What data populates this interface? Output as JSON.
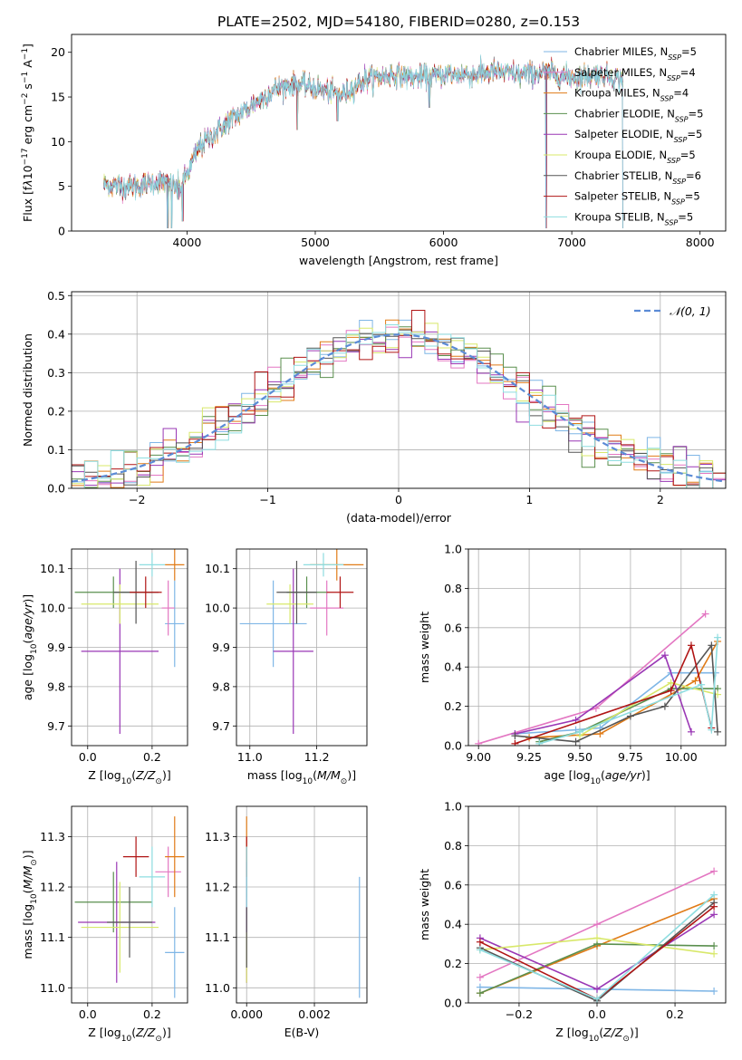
{
  "figure": {
    "title": "PLATE=2502, MJD=54180, FIBERID=0280, z=0.153"
  },
  "models": [
    {
      "name": "Chabrier MILES",
      "nssp": "5",
      "color": "#7fb6e6"
    },
    {
      "name": "Salpeter MILES",
      "nssp": "4",
      "color": "#e377c2"
    },
    {
      "name": "Kroupa MILES",
      "nssp": "4",
      "color": "#e07b17"
    },
    {
      "name": "Chabrier ELODIE",
      "nssp": "5",
      "color": "#5a8f4e"
    },
    {
      "name": "Salpeter ELODIE",
      "nssp": "5",
      "color": "#9a37b5"
    },
    {
      "name": "Kroupa ELODIE",
      "nssp": "5",
      "color": "#d8e86a"
    },
    {
      "name": "Chabrier STELIB",
      "nssp": "6",
      "color": "#555555"
    },
    {
      "name": "Salpeter STELIB",
      "nssp": "5",
      "color": "#b01515"
    },
    {
      "name": "Kroupa STELIB",
      "nssp": "5",
      "color": "#8edde0"
    }
  ],
  "legend_prefix": "N",
  "legend_sub": "SSP",
  "chart_data": [
    {
      "id": "spectrum",
      "type": "line",
      "xlabel": "wavelength [Angstrom, rest frame]",
      "ylabel": "Flux [f_λ10^-17 erg cm^-2 s^-1 A^-1]",
      "xlim": [
        3100,
        8200
      ],
      "ylim": [
        0,
        22
      ],
      "xticks": [
        4000,
        5000,
        6000,
        7000,
        8000
      ],
      "yticks": [
        0,
        5,
        10,
        15,
        20
      ],
      "grid": false,
      "legend": "upper right",
      "anchor_x": [
        3350,
        3600,
        3800,
        3950,
        4100,
        4300,
        4500,
        4700,
        4850,
        5000,
        5200,
        5400,
        5600,
        5800,
        6000,
        6200,
        6400,
        6600,
        6800,
        7000,
        7200,
        7400
      ],
      "anchor_y": [
        5.2,
        5.0,
        5.5,
        4.8,
        9.5,
        12.0,
        14.0,
        16.0,
        16.5,
        16.0,
        15.2,
        17.0,
        17.5,
        17.2,
        17.5,
        17.5,
        17.8,
        17.5,
        17.8,
        17.2,
        17.5,
        17.0
      ],
      "dips": [
        {
          "x": 3850,
          "y": 0
        },
        {
          "x": 3880,
          "y": 0
        },
        {
          "x": 3930,
          "y": 3.2
        },
        {
          "x": 3965,
          "y": 0.8
        },
        {
          "x": 4300,
          "y": 10.5
        },
        {
          "x": 4860,
          "y": 11.0
        },
        {
          "x": 5175,
          "y": 12.0
        },
        {
          "x": 5890,
          "y": 13.5
        },
        {
          "x": 6800,
          "y": 0
        },
        {
          "x": 7400,
          "y": 0
        }
      ]
    },
    {
      "id": "residuals",
      "type": "step-histogram",
      "xlabel": "(data-model)/error",
      "ylabel": "Normed distribution",
      "xlim": [
        -2.5,
        2.5
      ],
      "ylim": [
        0,
        0.51
      ],
      "xticks": [
        -2,
        -1,
        0,
        1,
        2
      ],
      "yticks": [
        0.0,
        0.1,
        0.2,
        0.3,
        0.4,
        0.5
      ],
      "grid": true,
      "bin_width": 0.1,
      "legend": "upper right",
      "reference_curve": {
        "name": "𝒩(0, 1)",
        "color": "#5b8bd6",
        "mean": 0,
        "std": 1
      }
    },
    {
      "id": "age-vs-Z",
      "type": "errorbar",
      "xlabel": "Z [log10(Z/Z⊙)]",
      "ylabel": "age  [log10(age/yr)]",
      "xlim": [
        -0.05,
        0.31
      ],
      "ylim": [
        9.65,
        10.15
      ],
      "xticks": [
        0.0,
        0.2
      ],
      "yticks": [
        9.7,
        9.8,
        9.9,
        10.0,
        10.1
      ],
      "grid": true,
      "points": [
        {
          "model": 0,
          "x": 0.27,
          "xerr": 0.03,
          "y": 9.96,
          "yerr": 0.11
        },
        {
          "model": 1,
          "x": 0.25,
          "xerr": 0.02,
          "y": 10.0,
          "yerr": 0.07
        },
        {
          "model": 2,
          "x": 0.27,
          "xerr": 0.03,
          "y": 10.11,
          "yerr": 0.04
        },
        {
          "model": 3,
          "x": 0.08,
          "xerr": 0.12,
          "y": 10.04,
          "yerr": 0.04
        },
        {
          "model": 4,
          "x": 0.1,
          "xerr": 0.12,
          "y": 9.89,
          "yerr": 0.21
        },
        {
          "model": 5,
          "x": 0.1,
          "xerr": 0.12,
          "y": 10.01,
          "yerr": 0.05
        },
        {
          "model": 6,
          "x": 0.15,
          "xerr": 0.07,
          "y": 10.04,
          "yerr": 0.08
        },
        {
          "model": 7,
          "x": 0.18,
          "xerr": 0.05,
          "y": 10.04,
          "yerr": 0.04
        },
        {
          "model": 8,
          "x": 0.2,
          "xerr": 0.04,
          "y": 10.11,
          "yerr": 0.03
        }
      ]
    },
    {
      "id": "age-vs-mass",
      "type": "errorbar",
      "xlabel": "mass [log10(M/M⊙)]",
      "ylabel": "",
      "xlim": [
        10.96,
        11.35
      ],
      "ylim": [
        9.65,
        10.15
      ],
      "xticks": [
        11.0,
        11.2
      ],
      "yticks": [
        9.7,
        9.8,
        9.9,
        10.0,
        10.1
      ],
      "grid": true,
      "points": [
        {
          "model": 0,
          "x": 11.07,
          "xerr": 0.1,
          "y": 9.96,
          "yerr": 0.11
        },
        {
          "model": 1,
          "x": 11.23,
          "xerr": 0.05,
          "y": 10.0,
          "yerr": 0.07
        },
        {
          "model": 2,
          "x": 11.26,
          "xerr": 0.08,
          "y": 10.11,
          "yerr": 0.04
        },
        {
          "model": 3,
          "x": 11.17,
          "xerr": 0.06,
          "y": 10.04,
          "yerr": 0.04
        },
        {
          "model": 4,
          "x": 11.13,
          "xerr": 0.06,
          "y": 9.89,
          "yerr": 0.21
        },
        {
          "model": 5,
          "x": 11.12,
          "xerr": 0.07,
          "y": 10.01,
          "yerr": 0.05
        },
        {
          "model": 6,
          "x": 11.14,
          "xerr": 0.06,
          "y": 10.04,
          "yerr": 0.08
        },
        {
          "model": 7,
          "x": 11.27,
          "xerr": 0.04,
          "y": 10.04,
          "yerr": 0.04
        },
        {
          "model": 8,
          "x": 11.22,
          "xerr": 0.06,
          "y": 10.11,
          "yerr": 0.03
        }
      ]
    },
    {
      "id": "weight-vs-age",
      "type": "line",
      "xlabel": "age  [log10(age/yr)]",
      "ylabel": "mass weight",
      "xlim": [
        8.95,
        10.22
      ],
      "ylim": [
        0,
        1.0
      ],
      "xticks": [
        9.0,
        9.25,
        9.5,
        9.75,
        10.0
      ],
      "yticks": [
        0.0,
        0.2,
        0.4,
        0.6,
        0.8,
        1.0
      ],
      "grid": true,
      "series": [
        {
          "model": 0,
          "x": [
            9.18,
            9.48,
            9.6,
            9.95,
            10.17
          ],
          "y": [
            0.06,
            0.08,
            0.09,
            0.37,
            0.37
          ]
        },
        {
          "model": 1,
          "x": [
            9.0,
            9.58,
            10.12
          ],
          "y": [
            0.01,
            0.19,
            0.67
          ]
        },
        {
          "model": 2,
          "x": [
            9.25,
            9.6,
            10.07,
            10.18
          ],
          "y": [
            0.04,
            0.06,
            0.33,
            0.53
          ]
        },
        {
          "model": 3,
          "x": [
            9.3,
            9.5,
            9.95,
            10.18
          ],
          "y": [
            0.02,
            0.07,
            0.29,
            0.29
          ]
        },
        {
          "model": 4,
          "x": [
            9.18,
            9.48,
            9.92,
            10.05
          ],
          "y": [
            0.06,
            0.13,
            0.46,
            0.07
          ]
        },
        {
          "model": 5,
          "x": [
            9.5,
            9.95,
            10.18
          ],
          "y": [
            0.05,
            0.32,
            0.26
          ]
        },
        {
          "model": 6,
          "x": [
            9.18,
            9.48,
            9.75,
            9.92,
            10.15,
            10.18
          ],
          "y": [
            0.05,
            0.02,
            0.15,
            0.2,
            0.51,
            0.07
          ]
        },
        {
          "model": 7,
          "x": [
            9.18,
            9.95,
            10.05,
            10.15
          ],
          "y": [
            0.01,
            0.28,
            0.51,
            0.09
          ]
        },
        {
          "model": 8,
          "x": [
            9.3,
            9.5,
            10.1,
            10.15,
            10.18
          ],
          "y": [
            0.01,
            0.07,
            0.31,
            0.08,
            0.55
          ]
        }
      ]
    },
    {
      "id": "mass-vs-Z",
      "type": "errorbar",
      "xlabel": "Z [log10(Z/Z⊙)]",
      "ylabel": "mass [log10(M/M⊙)]",
      "xlim": [
        -0.05,
        0.31
      ],
      "ylim": [
        10.97,
        11.36
      ],
      "xticks": [
        0.0,
        0.2
      ],
      "yticks": [
        11.0,
        11.1,
        11.2,
        11.3
      ],
      "grid": true,
      "points": [
        {
          "model": 0,
          "x": 0.27,
          "xerr": 0.03,
          "y": 11.07,
          "yerr": 0.09
        },
        {
          "model": 1,
          "x": 0.25,
          "xerr": 0.04,
          "y": 11.23,
          "yerr": 0.05
        },
        {
          "model": 2,
          "x": 0.27,
          "xerr": 0.03,
          "y": 11.26,
          "yerr": 0.08
        },
        {
          "model": 3,
          "x": 0.08,
          "xerr": 0.12,
          "y": 11.17,
          "yerr": 0.06
        },
        {
          "model": 4,
          "x": 0.09,
          "xerr": 0.12,
          "y": 11.13,
          "yerr": 0.12
        },
        {
          "model": 5,
          "x": 0.1,
          "xerr": 0.12,
          "y": 11.12,
          "yerr": 0.09
        },
        {
          "model": 6,
          "x": 0.13,
          "xerr": 0.07,
          "y": 11.13,
          "yerr": 0.07
        },
        {
          "model": 7,
          "x": 0.15,
          "xerr": 0.04,
          "y": 11.26,
          "yerr": 0.04
        },
        {
          "model": 8,
          "x": 0.2,
          "xerr": 0.04,
          "y": 11.22,
          "yerr": 0.06
        }
      ]
    },
    {
      "id": "mass-vs-ebv",
      "type": "errorbar",
      "xlabel": "E(B-V)",
      "ylabel": "",
      "xlim": [
        -0.0003,
        0.00355
      ],
      "ylim": [
        10.97,
        11.36
      ],
      "xticks": [
        0.0,
        0.002
      ],
      "xtick_labels": [
        "0.000",
        "0.002"
      ],
      "yticks": [
        11.0,
        11.1,
        11.2,
        11.3
      ],
      "grid": true,
      "points": [
        {
          "model": 0,
          "x": 0.00333,
          "xerr": 0,
          "y": 11.1,
          "yerr": 0.12
        },
        {
          "model": 1,
          "x": 0.0,
          "xerr": 0,
          "y": 11.23,
          "yerr": 0.05
        },
        {
          "model": 2,
          "x": 0.0,
          "xerr": 0,
          "y": 11.26,
          "yerr": 0.08
        },
        {
          "model": 3,
          "x": 0.0,
          "xerr": 0,
          "y": 11.17,
          "yerr": 0.06
        },
        {
          "model": 4,
          "x": 0.0,
          "xerr": 0,
          "y": 11.13,
          "yerr": 0.12
        },
        {
          "model": 5,
          "x": 0.0,
          "xerr": 0,
          "y": 11.06,
          "yerr": 0.05
        },
        {
          "model": 6,
          "x": 0.0,
          "xerr": 0,
          "y": 11.1,
          "yerr": 0.06
        },
        {
          "model": 7,
          "x": 0.0,
          "xerr": 0,
          "y": 11.26,
          "yerr": 0.04
        },
        {
          "model": 8,
          "x": 0.0,
          "xerr": 0,
          "y": 11.22,
          "yerr": 0.06
        }
      ]
    },
    {
      "id": "weight-vs-Z",
      "type": "line",
      "xlabel": "Z [log10(Z/Z⊙)]",
      "ylabel": "mass weight",
      "xlim": [
        -0.33,
        0.33
      ],
      "ylim": [
        0,
        1.0
      ],
      "xticks": [
        -0.2,
        0.0,
        0.2
      ],
      "yticks": [
        0.0,
        0.2,
        0.4,
        0.6,
        0.8,
        1.0
      ],
      "grid": true,
      "series": [
        {
          "model": 0,
          "x": [
            -0.3,
            0.0,
            0.3
          ],
          "y": [
            0.08,
            0.07,
            0.06
          ]
        },
        {
          "model": 1,
          "x": [
            -0.3,
            0.0,
            0.3
          ],
          "y": [
            0.13,
            0.4,
            0.67
          ]
        },
        {
          "model": 2,
          "x": [
            -0.3,
            0.0,
            0.3
          ],
          "y": [
            0.05,
            0.29,
            0.53
          ]
        },
        {
          "model": 3,
          "x": [
            -0.3,
            0.0,
            0.3
          ],
          "y": [
            0.05,
            0.3,
            0.29
          ]
        },
        {
          "model": 4,
          "x": [
            -0.3,
            0.0,
            0.3
          ],
          "y": [
            0.33,
            0.07,
            0.45
          ]
        },
        {
          "model": 5,
          "x": [
            -0.3,
            0.0,
            0.3
          ],
          "y": [
            0.27,
            0.33,
            0.25
          ]
        },
        {
          "model": 6,
          "x": [
            -0.3,
            0.0,
            0.3
          ],
          "y": [
            0.28,
            0.01,
            0.51
          ]
        },
        {
          "model": 7,
          "x": [
            -0.3,
            0.0,
            0.3
          ],
          "y": [
            0.31,
            0.02,
            0.49
          ]
        },
        {
          "model": 8,
          "x": [
            -0.3,
            0.0,
            0.3
          ],
          "y": [
            0.27,
            0.02,
            0.55
          ]
        }
      ]
    }
  ]
}
